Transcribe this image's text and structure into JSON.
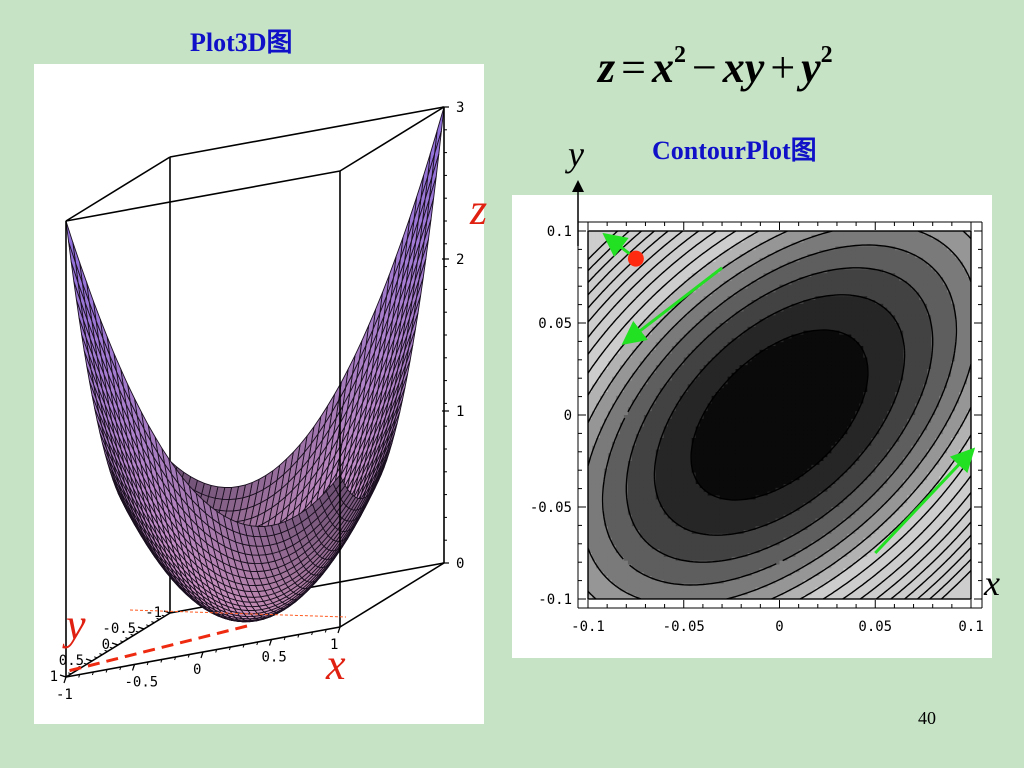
{
  "slide": {
    "title_3d": "Plot3D图",
    "title_contour": "ContourPlot图",
    "formula": {
      "lhs": "z",
      "eq": "=",
      "t1": "x",
      "e1": "2",
      "minus": "−",
      "t2": "xy",
      "plus": "+",
      "t3": "y",
      "e3": "2"
    },
    "page_number": "40",
    "colors": {
      "title": "#1010c8",
      "axis_red": "#e02010",
      "arrow_green": "#22e022",
      "point_red": "#ff2a10",
      "background": "#c6e3c6"
    }
  },
  "chart_data": [
    {
      "type": "surface",
      "function": "z = x^2 - xy + y^2",
      "xlim": [
        -1,
        1
      ],
      "ylim": [
        -1,
        1
      ],
      "zlim": [
        0,
        3
      ],
      "x_ticks": [
        "-1",
        "-0.5",
        "0",
        "0.5",
        "1"
      ],
      "y_ticks": [
        "-1",
        "-0.5",
        "0",
        "0.5",
        "1"
      ],
      "z_ticks": [
        "0",
        "1",
        "2",
        "3"
      ],
      "axis_labels": {
        "x": "x",
        "y": "y",
        "z": "z"
      },
      "mesh_divisions": 40
    },
    {
      "type": "contour",
      "function": "z = x^2 - xy + y^2",
      "xlim": [
        -0.1,
        0.1
      ],
      "ylim": [
        -0.1,
        0.1
      ],
      "x_ticks": [
        "-0.1",
        "-0.05",
        "0",
        "0.05",
        "0.1"
      ],
      "y_ticks": [
        "0.1",
        "0.05",
        "0",
        "-0.05",
        "-0.1"
      ],
      "axis_labels": {
        "x": "x",
        "y": "y"
      },
      "levels": [
        0.0016,
        0.0032,
        0.0048,
        0.0064,
        0.008,
        0.0096,
        0.0112,
        0.0128,
        0.0144,
        0.016,
        0.0176,
        0.0192,
        0.0208,
        0.0224,
        0.024,
        0.0256
      ],
      "marked_point": {
        "x": -0.075,
        "y": 0.085
      },
      "gradient_arrows": [
        {
          "from": [
            -0.075,
            0.085
          ],
          "to": [
            -0.09,
            0.097
          ]
        },
        {
          "from": [
            -0.03,
            0.08
          ],
          "to": [
            -0.08,
            0.04
          ]
        },
        {
          "from": [
            0.05,
            -0.075
          ],
          "to": [
            0.1,
            -0.02
          ]
        }
      ]
    }
  ]
}
